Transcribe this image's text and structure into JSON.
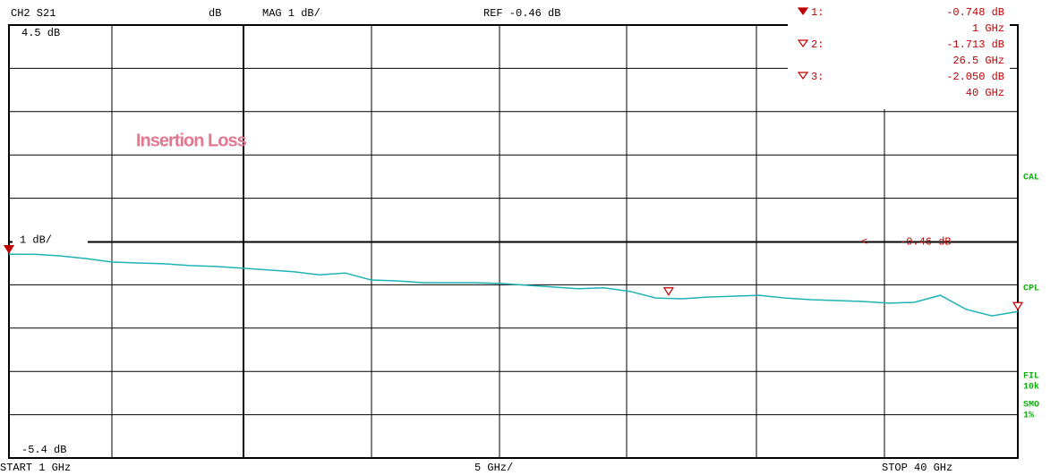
{
  "chart_data": {
    "type": "line",
    "header": {
      "channel": "CH2 S21",
      "unit": "dB",
      "format": "MAG 1 dB/",
      "ref": "REF -0.46 dB"
    },
    "footer": {
      "start": "START 1 GHz",
      "scale": "5 GHz/",
      "stop": "STOP 40 GHz"
    },
    "annotation": "Insertion Loss",
    "scale_label": "1 dB/",
    "ref_value": -0.46,
    "ref_label": "-0.46 dB",
    "side_labels": [
      "CAL",
      "CPL",
      "FIL",
      "10k",
      "SMO",
      "1%"
    ],
    "xlim": [
      1,
      40
    ],
    "ylim": [
      -5.4,
      4.5
    ],
    "yticks": [
      {
        "value": 4.5,
        "label": "4.5 dB"
      },
      {
        "value": -5.4,
        "label": "-5.4 dB"
      }
    ],
    "color": "#1fb3b3",
    "x": [
      1,
      2,
      3,
      4,
      5,
      6,
      7,
      8,
      9,
      10,
      11,
      12,
      13,
      14,
      15,
      16,
      17,
      18,
      19,
      20,
      21,
      22,
      23,
      24,
      25,
      26,
      27,
      28,
      29,
      30,
      31,
      32,
      33,
      34,
      35,
      36,
      37,
      38,
      39,
      40
    ],
    "values": [
      -0.74,
      -0.74,
      -0.78,
      -0.84,
      -0.92,
      -0.94,
      -0.96,
      -1.0,
      -1.02,
      -1.06,
      -1.1,
      -1.14,
      -1.21,
      -1.17,
      -1.33,
      -1.35,
      -1.39,
      -1.39,
      -1.39,
      -1.41,
      -1.45,
      -1.49,
      -1.53,
      -1.51,
      -1.59,
      -1.74,
      -1.76,
      -1.72,
      -1.7,
      -1.68,
      -1.74,
      -1.78,
      -1.8,
      -1.82,
      -1.86,
      -1.84,
      -1.68,
      -2.0,
      -2.15,
      -2.05
    ],
    "markers": [
      {
        "label": "1:",
        "x": 1,
        "x_label": "1 GHz",
        "value": -0.748,
        "value_label": "-0.748 dB"
      },
      {
        "label": "2:",
        "x": 26.5,
        "x_label": "26.5 GHz",
        "value": -1.713,
        "value_label": "-1.713 dB"
      },
      {
        "label": "3:",
        "x": 40,
        "x_label": "40 GHz",
        "value": -2.05,
        "value_label": "-2.050 dB"
      }
    ]
  }
}
